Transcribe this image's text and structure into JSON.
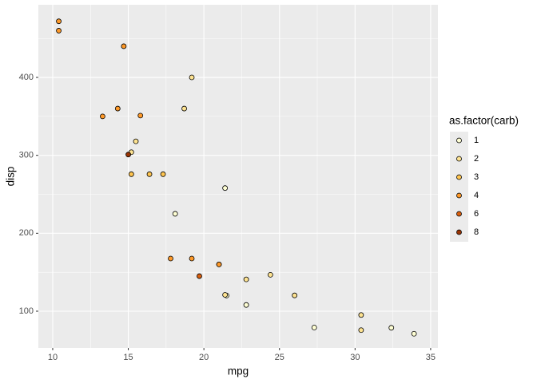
{
  "chart_data": {
    "type": "scatter",
    "x_label": "mpg",
    "y_label": "disp",
    "legend_title": "as.factor(carb)",
    "xlim": [
      9.05,
      35.48
    ],
    "ylim": [
      52.9,
      493.2
    ],
    "xticks": [
      10,
      15,
      20,
      25,
      30,
      35
    ],
    "yticks": [
      100,
      200,
      300,
      400
    ],
    "xminor": [
      12.5,
      17.5,
      22.5,
      27.5,
      32.5
    ],
    "yminor": [
      150,
      250,
      350,
      450
    ],
    "grid": true,
    "legend": "right",
    "series": [
      {
        "name": "1",
        "color": "#FFFFD4",
        "x": [
          22.8,
          21.4,
          18.1,
          32.4,
          33.9,
          21.5,
          27.3
        ],
        "y": [
          108,
          258,
          225,
          78.7,
          71.1,
          120.1,
          79
        ]
      },
      {
        "name": "2",
        "color": "#FEE391",
        "x": [
          18.7,
          24.4,
          22.8,
          30.4,
          15.5,
          15.2,
          19.2,
          26.0,
          30.4,
          21.4
        ],
        "y": [
          360,
          146.7,
          140.8,
          75.7,
          318,
          304,
          400,
          120.3,
          95.1,
          121
        ]
      },
      {
        "name": "3",
        "color": "#FEC44F",
        "x": [
          16.4,
          17.3,
          15.2
        ],
        "y": [
          275.8,
          275.8,
          275.8
        ]
      },
      {
        "name": "4",
        "color": "#FE9929",
        "x": [
          21.0,
          21.0,
          14.3,
          19.2,
          17.8,
          10.4,
          10.4,
          14.7,
          13.3,
          15.8
        ],
        "y": [
          160,
          160,
          360,
          167.6,
          167.6,
          472,
          460,
          440,
          350,
          351
        ]
      },
      {
        "name": "6",
        "color": "#D95F0E",
        "x": [
          19.7
        ],
        "y": [
          145
        ]
      },
      {
        "name": "8",
        "color": "#993404",
        "x": [
          15.0
        ],
        "y": [
          301
        ]
      }
    ]
  }
}
